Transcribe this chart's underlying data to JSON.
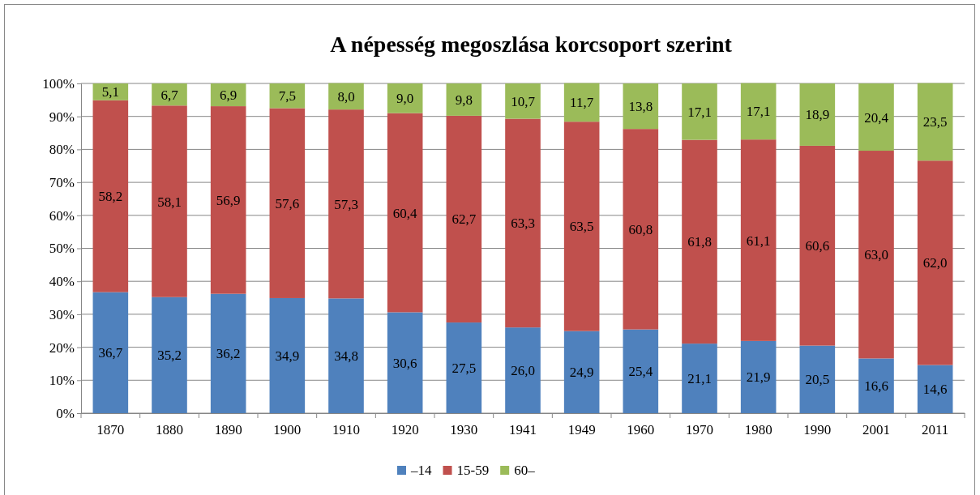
{
  "chart_data": {
    "type": "bar",
    "title": "A népesség megoszlása korcsoport szerint",
    "stacked": true,
    "grid": "y",
    "legend": "bottom",
    "categories": [
      "1870",
      "1880",
      "1890",
      "1900",
      "1910",
      "1920",
      "1930",
      "1941",
      "1949",
      "1960",
      "1970",
      "1980",
      "1990",
      "2001",
      "2011"
    ],
    "ylim": [
      0,
      100
    ],
    "yticks": [
      {
        "value": 0,
        "label": "0%"
      },
      {
        "value": 10,
        "label": "10%"
      },
      {
        "value": 20,
        "label": "20%"
      },
      {
        "value": 30,
        "label": "30%"
      },
      {
        "value": 40,
        "label": "40%"
      },
      {
        "value": 50,
        "label": "50%"
      },
      {
        "value": 60,
        "label": "60%"
      },
      {
        "value": 70,
        "label": "70%"
      },
      {
        "value": 80,
        "label": "80%"
      },
      {
        "value": 90,
        "label": "90%"
      },
      {
        "value": 100,
        "label": "100%"
      }
    ],
    "series": [
      {
        "name": "–14",
        "color": "#4f81bd",
        "values": [
          36.7,
          35.2,
          36.2,
          34.9,
          34.8,
          30.6,
          27.5,
          26.0,
          24.9,
          25.4,
          21.1,
          21.9,
          20.5,
          16.6,
          14.6
        ],
        "value_labels": [
          "36,7",
          "35,2",
          "36,2",
          "34,9",
          "34,8",
          "30,6",
          "27,5",
          "26,0",
          "24,9",
          "25,4",
          "21,1",
          "21,9",
          "20,5",
          "16,6",
          "14,6"
        ]
      },
      {
        "name": "15-59",
        "color": "#c0504d",
        "values": [
          58.2,
          58.1,
          56.9,
          57.6,
          57.3,
          60.4,
          62.7,
          63.3,
          63.5,
          60.8,
          61.8,
          61.1,
          60.6,
          63.0,
          62.0
        ],
        "value_labels": [
          "58,2",
          "58,1",
          "56,9",
          "57,6",
          "57,3",
          "60,4",
          "62,7",
          "63,3",
          "63,5",
          "60,8",
          "61,8",
          "61,1",
          "60,6",
          "63,0",
          "62,0"
        ]
      },
      {
        "name": "60–",
        "color": "#9bbb59",
        "values": [
          5.1,
          6.7,
          6.9,
          7.5,
          8.0,
          9.0,
          9.8,
          10.7,
          11.7,
          13.8,
          17.1,
          17.1,
          18.9,
          20.4,
          23.5
        ],
        "value_labels": [
          "5,1",
          "6,7",
          "6,9",
          "7,5",
          "8,0",
          "9,0",
          "9,8",
          "10,7",
          "11,7",
          "13,8",
          "17,1",
          "17,1",
          "18,9",
          "20,4",
          "23,5"
        ]
      }
    ]
  }
}
